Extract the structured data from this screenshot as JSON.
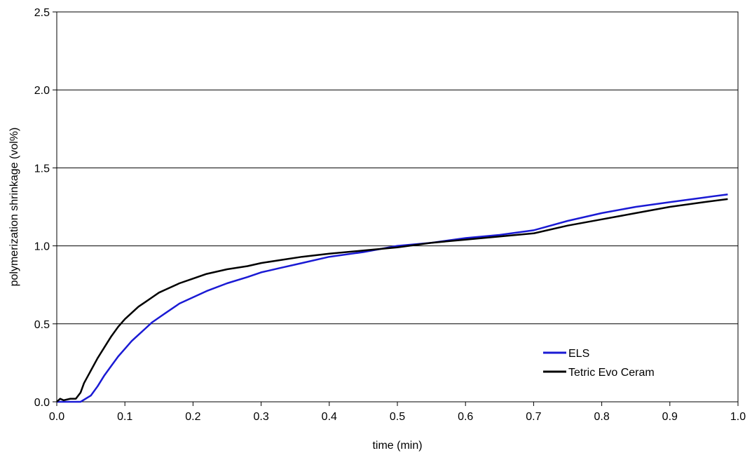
{
  "chart_data": {
    "type": "line",
    "xlabel": "time (min)",
    "ylabel": "polymerization shrinkage (vol%)",
    "xlim": [
      0.0,
      1.0
    ],
    "ylim": [
      0.0,
      2.5
    ],
    "xticks": [
      "0.0",
      "0.1",
      "0.2",
      "0.3",
      "0.4",
      "0.5",
      "0.6",
      "0.7",
      "0.8",
      "0.9",
      "1.0"
    ],
    "yticks": [
      "0.0",
      "0.5",
      "1.0",
      "1.5",
      "2.0",
      "2.5"
    ],
    "grid": "horizontal",
    "legend_position": "bottom-right",
    "series": [
      {
        "name": "ELS",
        "color": "#1a1ad4",
        "points": [
          [
            0.0,
            0.0
          ],
          [
            0.02,
            0.0
          ],
          [
            0.035,
            0.0
          ],
          [
            0.05,
            0.04
          ],
          [
            0.06,
            0.1
          ],
          [
            0.07,
            0.17
          ],
          [
            0.08,
            0.23
          ],
          [
            0.09,
            0.29
          ],
          [
            0.1,
            0.34
          ],
          [
            0.11,
            0.39
          ],
          [
            0.12,
            0.43
          ],
          [
            0.13,
            0.47
          ],
          [
            0.14,
            0.51
          ],
          [
            0.15,
            0.54
          ],
          [
            0.16,
            0.57
          ],
          [
            0.18,
            0.63
          ],
          [
            0.2,
            0.67
          ],
          [
            0.22,
            0.71
          ],
          [
            0.25,
            0.76
          ],
          [
            0.28,
            0.8
          ],
          [
            0.3,
            0.83
          ],
          [
            0.33,
            0.86
          ],
          [
            0.36,
            0.89
          ],
          [
            0.4,
            0.93
          ],
          [
            0.45,
            0.96
          ],
          [
            0.5,
            1.0
          ],
          [
            0.55,
            1.02
          ],
          [
            0.6,
            1.05
          ],
          [
            0.65,
            1.07
          ],
          [
            0.7,
            1.1
          ],
          [
            0.75,
            1.16
          ],
          [
            0.8,
            1.21
          ],
          [
            0.85,
            1.25
          ],
          [
            0.9,
            1.28
          ],
          [
            0.95,
            1.31
          ],
          [
            0.985,
            1.33
          ]
        ]
      },
      {
        "name": "Tetric Evo Ceram",
        "color": "#000000",
        "points": [
          [
            0.0,
            0.0
          ],
          [
            0.005,
            0.02
          ],
          [
            0.01,
            0.01
          ],
          [
            0.02,
            0.02
          ],
          [
            0.028,
            0.02
          ],
          [
            0.035,
            0.06
          ],
          [
            0.04,
            0.12
          ],
          [
            0.05,
            0.2
          ],
          [
            0.06,
            0.28
          ],
          [
            0.07,
            0.35
          ],
          [
            0.08,
            0.42
          ],
          [
            0.09,
            0.48
          ],
          [
            0.1,
            0.53
          ],
          [
            0.11,
            0.57
          ],
          [
            0.12,
            0.61
          ],
          [
            0.13,
            0.64
          ],
          [
            0.14,
            0.67
          ],
          [
            0.15,
            0.7
          ],
          [
            0.16,
            0.72
          ],
          [
            0.18,
            0.76
          ],
          [
            0.2,
            0.79
          ],
          [
            0.22,
            0.82
          ],
          [
            0.25,
            0.85
          ],
          [
            0.28,
            0.87
          ],
          [
            0.3,
            0.89
          ],
          [
            0.33,
            0.91
          ],
          [
            0.36,
            0.93
          ],
          [
            0.4,
            0.95
          ],
          [
            0.45,
            0.97
          ],
          [
            0.5,
            0.99
          ],
          [
            0.55,
            1.02
          ],
          [
            0.6,
            1.04
          ],
          [
            0.65,
            1.06
          ],
          [
            0.7,
            1.08
          ],
          [
            0.75,
            1.13
          ],
          [
            0.8,
            1.17
          ],
          [
            0.85,
            1.21
          ],
          [
            0.9,
            1.25
          ],
          [
            0.95,
            1.28
          ],
          [
            0.985,
            1.3
          ]
        ]
      }
    ]
  }
}
